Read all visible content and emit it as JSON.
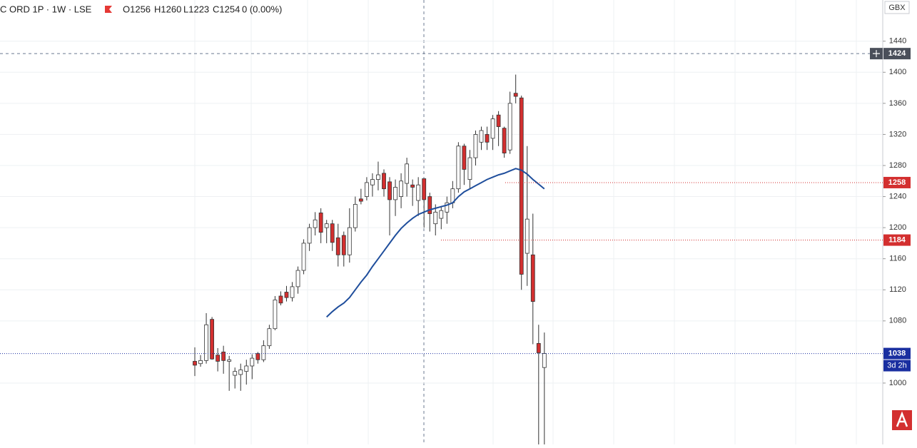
{
  "chart_data": {
    "type": "candlestick",
    "title": "C ORD 1P · 1W · LSE",
    "ohlc_labels": [
      "O1256",
      "H1260",
      "L1223",
      "C1254"
    ],
    "change": "0 (0.00%)",
    "currency": "GBX",
    "ylim": [
      921,
      1493
    ],
    "yticks": [
      1000,
      1080,
      1120,
      1160,
      1200,
      1240,
      1280,
      1320,
      1360,
      1400,
      1440
    ],
    "grid": true,
    "up_color": "#ffffff",
    "down_color": "#d32f2f",
    "open": [
      1028,
      1025,
      1029,
      1082,
      1036,
      1040,
      1028,
      1010,
      1011,
      1015,
      1022,
      1038,
      1030,
      1048,
      1070,
      1112,
      1117,
      1110,
      1124,
      1145,
      1180,
      1200,
      1219,
      1200,
      1205,
      1187,
      1190,
      1165,
      1200,
      1237,
      1240,
      1255,
      1262,
      1270,
      1259,
      1236,
      1240,
      1257,
      1255,
      1235,
      1263,
      1240,
      1205,
      1212,
      1220,
      1232,
      1250,
      1305,
      1262,
      1290,
      1310,
      1320,
      1315,
      1345,
      1328,
      1300,
      1373,
      1367,
      1167,
      1165,
      1051,
      1020
    ],
    "high": [
      1046,
      1036,
      1090,
      1085,
      1045,
      1048,
      1035,
      1020,
      1025,
      1030,
      1037,
      1040,
      1055,
      1075,
      1112,
      1118,
      1125,
      1130,
      1150,
      1185,
      1205,
      1220,
      1225,
      1210,
      1210,
      1205,
      1195,
      1225,
      1240,
      1250,
      1265,
      1270,
      1285,
      1275,
      1265,
      1262,
      1270,
      1290,
      1262,
      1265,
      1262,
      1245,
      1230,
      1228,
      1240,
      1260,
      1310,
      1308,
      1300,
      1325,
      1330,
      1330,
      1345,
      1350,
      1330,
      1375,
      1397,
      1370,
      1305,
      1218,
      1075,
      1065
    ],
    "low": [
      1009,
      1021,
      1025,
      1030,
      1015,
      1012,
      990,
      993,
      990,
      998,
      1005,
      1025,
      1027,
      1044,
      1068,
      1100,
      1105,
      1105,
      1115,
      1140,
      1170,
      1190,
      1180,
      1180,
      1170,
      1150,
      1150,
      1155,
      1195,
      1230,
      1235,
      1240,
      1248,
      1240,
      1190,
      1215,
      1225,
      1240,
      1228,
      1215,
      1200,
      1195,
      1190,
      1198,
      1205,
      1225,
      1245,
      1255,
      1250,
      1280,
      1300,
      1300,
      1300,
      1305,
      1290,
      1295,
      1360,
      1120,
      1125,
      1050,
      921,
      921
    ],
    "close": [
      1023,
      1029,
      1075,
      1031,
      1028,
      1029,
      1030,
      1015,
      1017,
      1022,
      1032,
      1030,
      1048,
      1070,
      1107,
      1103,
      1110,
      1124,
      1145,
      1180,
      1200,
      1210,
      1194,
      1205,
      1181,
      1165,
      1165,
      1200,
      1230,
      1234,
      1258,
      1262,
      1268,
      1250,
      1236,
      1252,
      1260,
      1282,
      1252,
      1255,
      1236,
      1218,
      1220,
      1222,
      1232,
      1250,
      1305,
      1275,
      1290,
      1320,
      1325,
      1310,
      1340,
      1330,
      1296,
      1360,
      1369,
      1140,
      1211,
      1105,
      1039,
      1038
    ],
    "ma": {
      "color": "#1f4e9c",
      "values": [
        null,
        null,
        null,
        null,
        null,
        null,
        null,
        null,
        null,
        null,
        null,
        null,
        null,
        null,
        null,
        null,
        null,
        null,
        null,
        null,
        null,
        null,
        null,
        1085,
        1092,
        1098,
        1103,
        1110,
        1120,
        1130,
        1139,
        1150,
        1160,
        1170,
        1180,
        1190,
        1199,
        1206,
        1212,
        1217,
        1220,
        1223,
        1225,
        1227,
        1229,
        1232,
        1240,
        1246,
        1250,
        1254,
        1258,
        1262,
        1265,
        1268,
        1270,
        1273,
        1276,
        1274,
        1269,
        1262,
        1256,
        1250
      ]
    },
    "price_lines": [
      {
        "value": 1258,
        "color": "#d32f2f"
      },
      {
        "value": 1184,
        "color": "#d32f2f"
      },
      {
        "value": 1038,
        "color": "#1a2fa0"
      }
    ],
    "crosshair": 1424,
    "countdown": "3d 2h"
  }
}
